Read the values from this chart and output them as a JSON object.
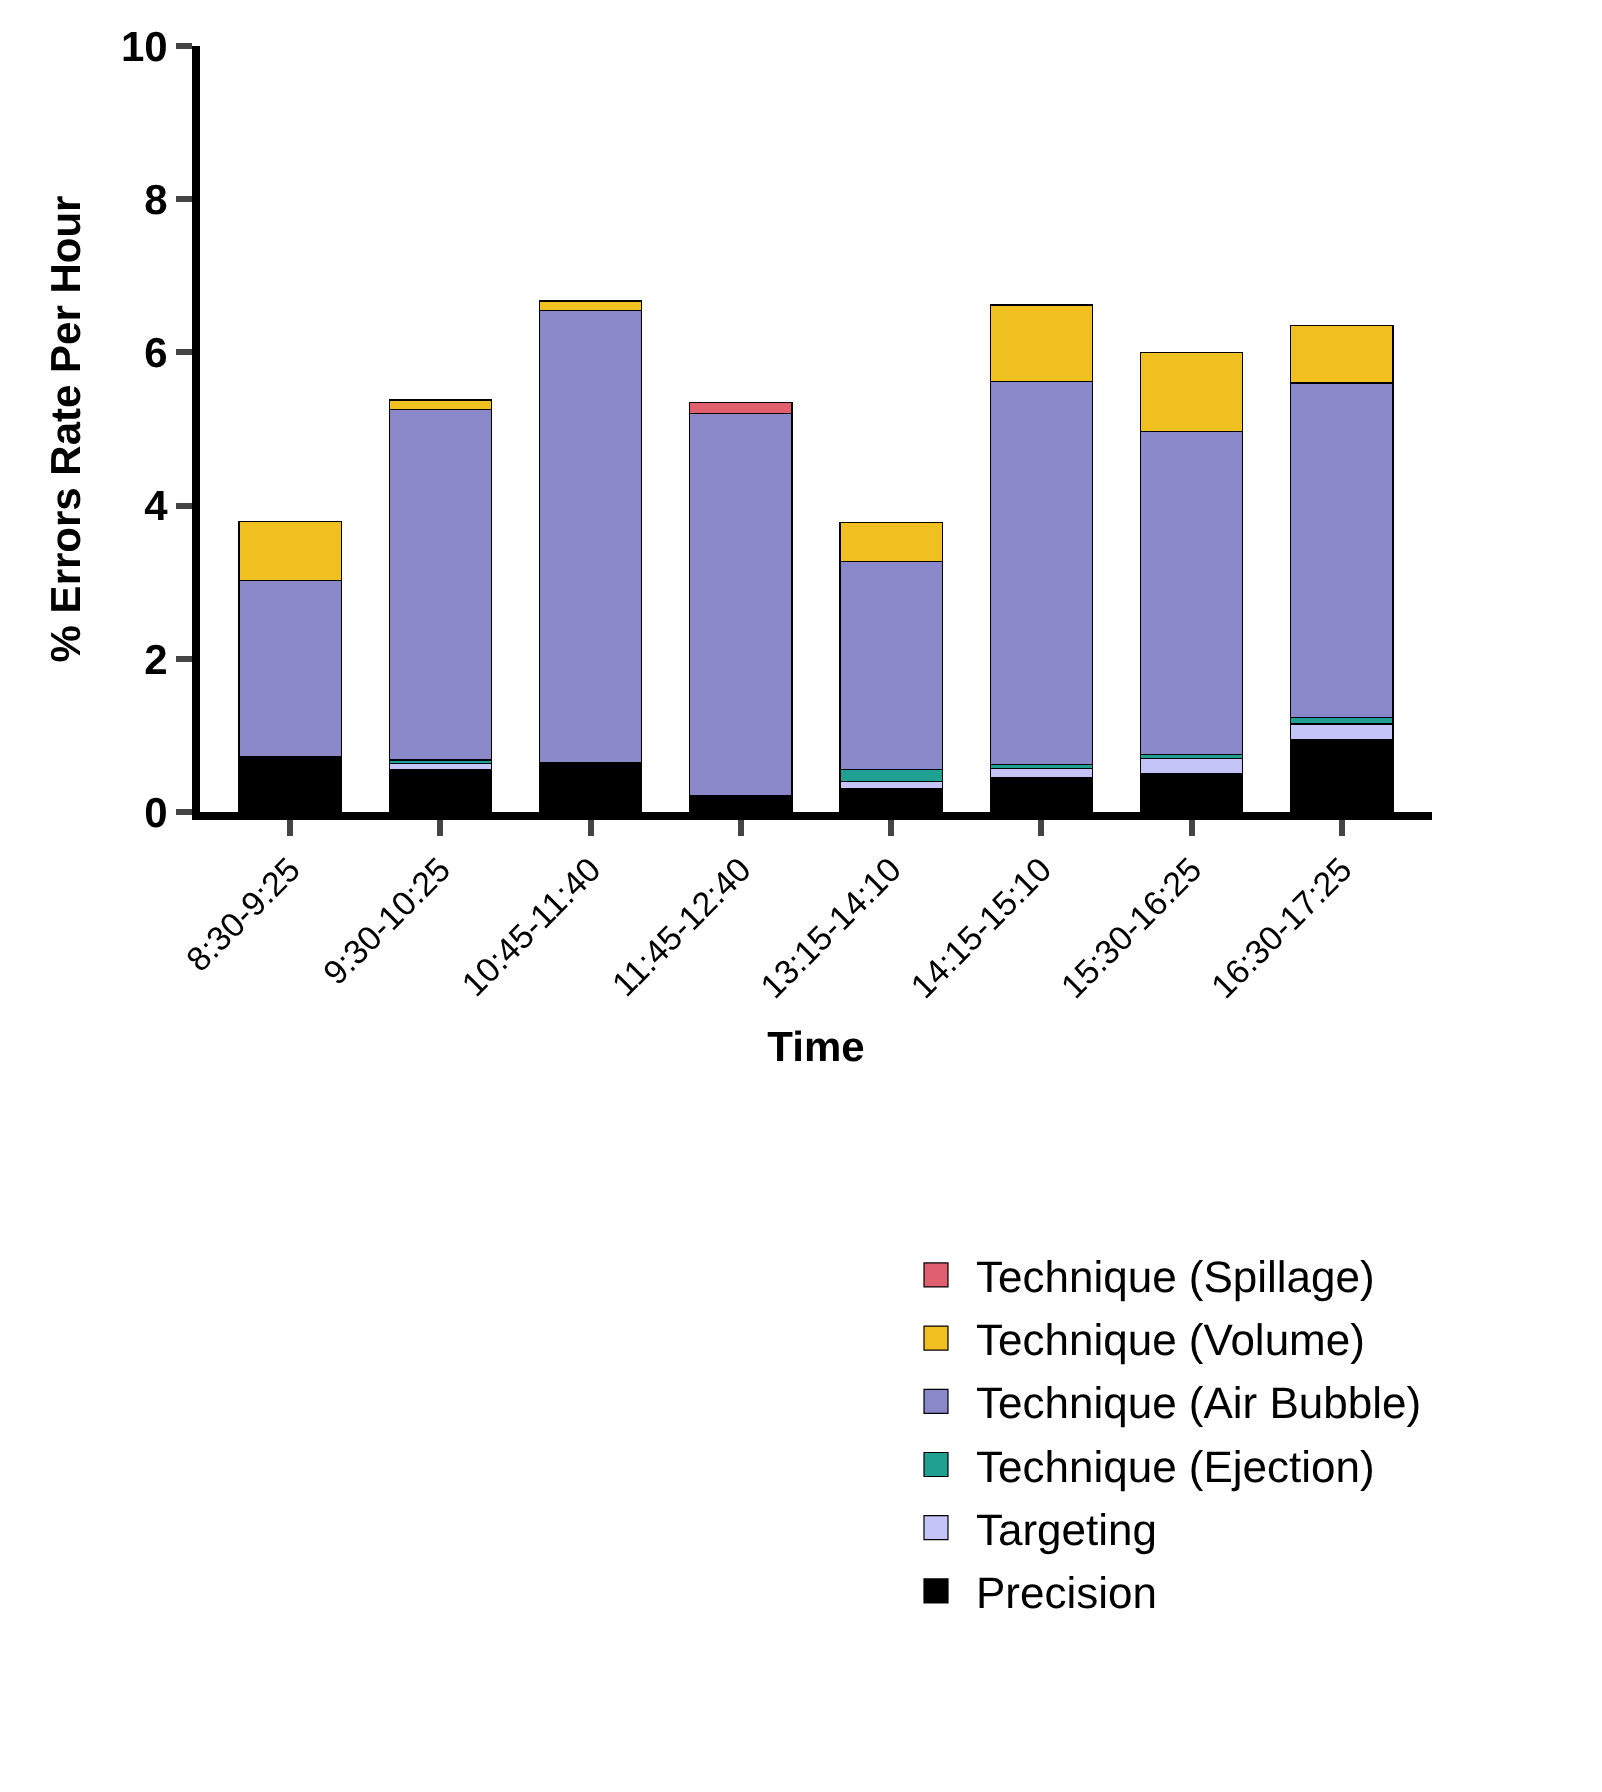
{
  "chart_data": {
    "type": "bar",
    "stacked": true,
    "xlabel": "Time",
    "ylabel": "% Errors Rate Per Hour",
    "categories": [
      "8:30-9:25",
      "9:30-10:25",
      "10:45-11:40",
      "11:45-12:40",
      "13:15-14:10",
      "14:15-15:10",
      "15:30-16:25",
      "16:30-17:25"
    ],
    "series": [
      {
        "name": "Precision",
        "color": "#000000",
        "values": [
          0.72,
          0.55,
          0.65,
          0.22,
          0.3,
          0.45,
          0.5,
          0.95
        ]
      },
      {
        "name": "Targeting",
        "color": "#c4c4f8",
        "values": [
          null,
          0.08,
          null,
          null,
          0.1,
          0.12,
          0.2,
          0.2
        ]
      },
      {
        "name": "Technique (Ejection)",
        "color": "#20a090",
        "values": [
          null,
          0.05,
          null,
          null,
          0.15,
          0.05,
          0.05,
          0.08
        ]
      },
      {
        "name": "Technique (Air Bubble)",
        "color": "#8a88c8",
        "values": [
          2.3,
          4.57,
          5.9,
          4.98,
          2.72,
          5.0,
          4.22,
          4.37
        ]
      },
      {
        "name": "Technique (Volume)",
        "color": "#f0c020",
        "values": [
          0.77,
          0.13,
          0.12,
          null,
          0.51,
          1.0,
          1.03,
          0.75
        ]
      },
      {
        "name": "Technique (Spillage)",
        "color": "#e06070",
        "values": [
          null,
          null,
          null,
          0.15,
          null,
          null,
          null,
          null
        ]
      }
    ],
    "ylim": [
      0,
      10
    ],
    "yticks": [
      0,
      2,
      4,
      6,
      8,
      10
    ],
    "legend": "bottom right"
  }
}
